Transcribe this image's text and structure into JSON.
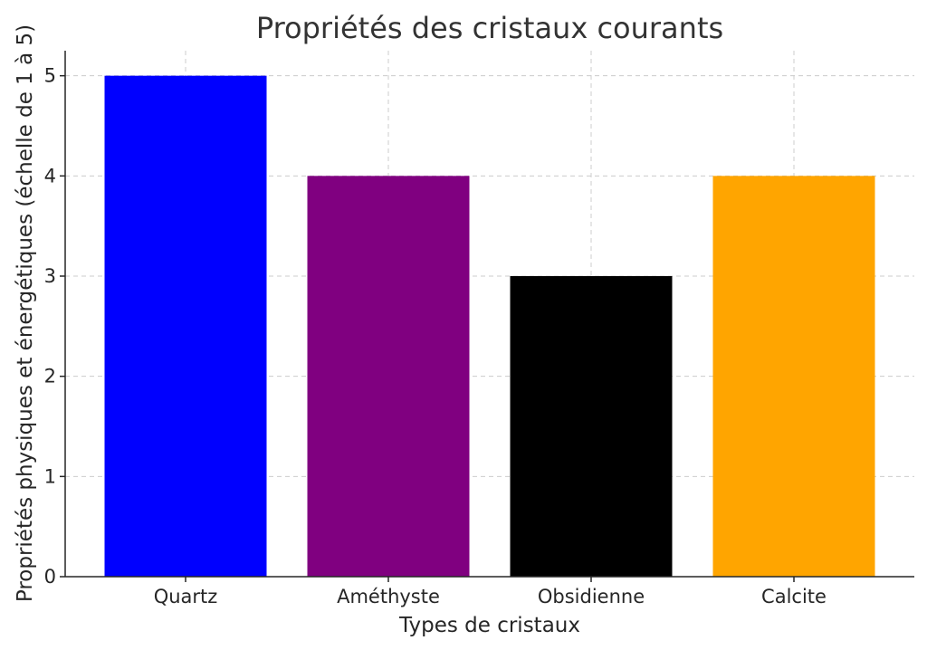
{
  "chart_data": {
    "type": "bar",
    "title": "Propriétés des cristaux courants",
    "xlabel": "Types de cristaux",
    "ylabel": "Propriétés physiques et énergétiques (échelle de 1 à 5)",
    "categories": [
      "Quartz",
      "Améthyste",
      "Obsidienne",
      "Calcite"
    ],
    "values": [
      5,
      4,
      3,
      4
    ],
    "colors": [
      "#0000ff",
      "#800080",
      "#000000",
      "#ffa500"
    ],
    "ylim": [
      0,
      5.25
    ],
    "yticks": [
      "0",
      "1",
      "2",
      "3",
      "4",
      "5"
    ],
    "grid": true
  }
}
